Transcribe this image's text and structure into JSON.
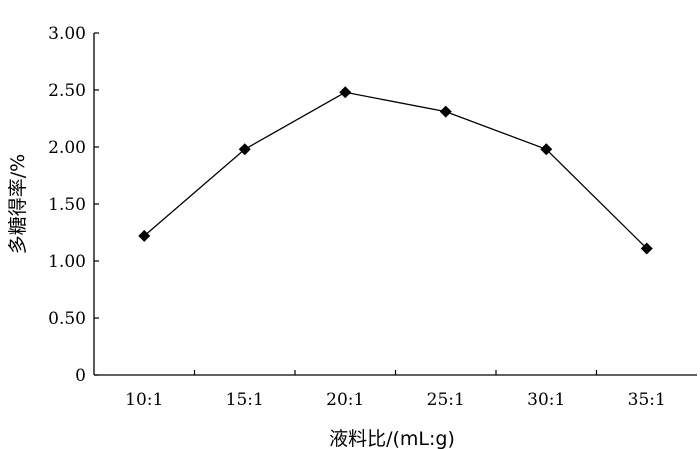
{
  "chart_data": {
    "type": "line",
    "categories": [
      "10:1",
      "15:1",
      "20:1",
      "25:1",
      "30:1",
      "35:1"
    ],
    "series": [
      {
        "values": [
          1.22,
          1.98,
          2.48,
          2.31,
          1.98,
          1.11
        ],
        "marker": "diamond",
        "color": "#000000"
      }
    ],
    "y_ticks": [
      "0",
      "0.50",
      "1.00",
      "1.50",
      "2.00",
      "2.50",
      "3.00"
    ],
    "xlabel": "液料比/(mL:g)",
    "ylabel": "多糖得率/%",
    "ylim": [
      0,
      3
    ],
    "grid": false
  }
}
